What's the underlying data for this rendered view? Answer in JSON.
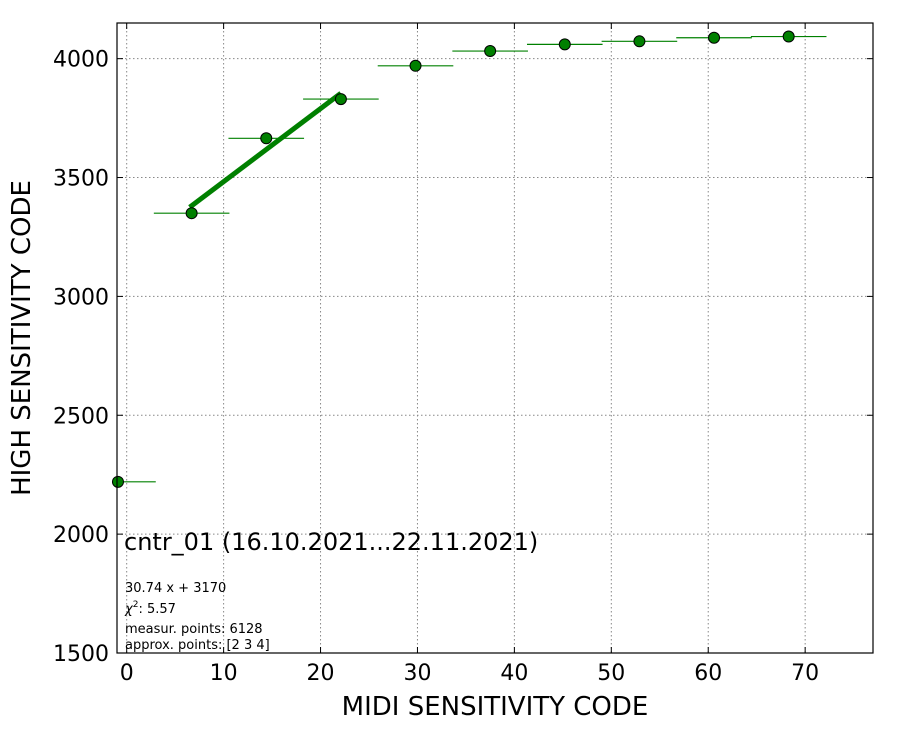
{
  "chart_data": {
    "type": "scatter",
    "xlabel": "MIDI SENSITIVITY CODE",
    "ylabel": "HIGH SENSITIVITY CODE",
    "xlim": [
      -1,
      77
    ],
    "ylim": [
      1500,
      4150
    ],
    "xticks": [
      0,
      10,
      20,
      30,
      40,
      50,
      60,
      70
    ],
    "yticks": [
      1500,
      2000,
      2500,
      3000,
      3500,
      4000
    ],
    "grid": true,
    "grid_style": "dotted",
    "marker_color": "#008000",
    "fit_line_color": "#008000",
    "points": [
      {
        "x": -0.9,
        "y": 2220,
        "xerr": 3.9
      },
      {
        "x": 6.7,
        "y": 3350,
        "xerr": 3.9
      },
      {
        "x": 14.4,
        "y": 3665,
        "xerr": 3.9
      },
      {
        "x": 22.1,
        "y": 3830,
        "xerr": 3.9
      },
      {
        "x": 29.8,
        "y": 3970,
        "xerr": 3.9
      },
      {
        "x": 37.5,
        "y": 4032,
        "xerr": 3.9
      },
      {
        "x": 45.2,
        "y": 4060,
        "xerr": 3.9
      },
      {
        "x": 52.9,
        "y": 4073,
        "xerr": 3.9
      },
      {
        "x": 60.6,
        "y": 4088,
        "xerr": 3.9
      },
      {
        "x": 68.3,
        "y": 4093,
        "xerr": 3.9
      }
    ],
    "fit_line": {
      "slope": 30.74,
      "intercept": 3170,
      "x_from": 6.5,
      "x_to": 22.1
    }
  },
  "annotations": {
    "title": "cntr_01 (16.10.2021...22.11.2021)",
    "fit_equation": "30.74 x + 3170",
    "chi_label": "χ",
    "chi_exp": "2",
    "chi_value": ": 5.57",
    "measur_points": "measur. points: 6128",
    "approx_points": "approx. points: [2 3 4]"
  }
}
